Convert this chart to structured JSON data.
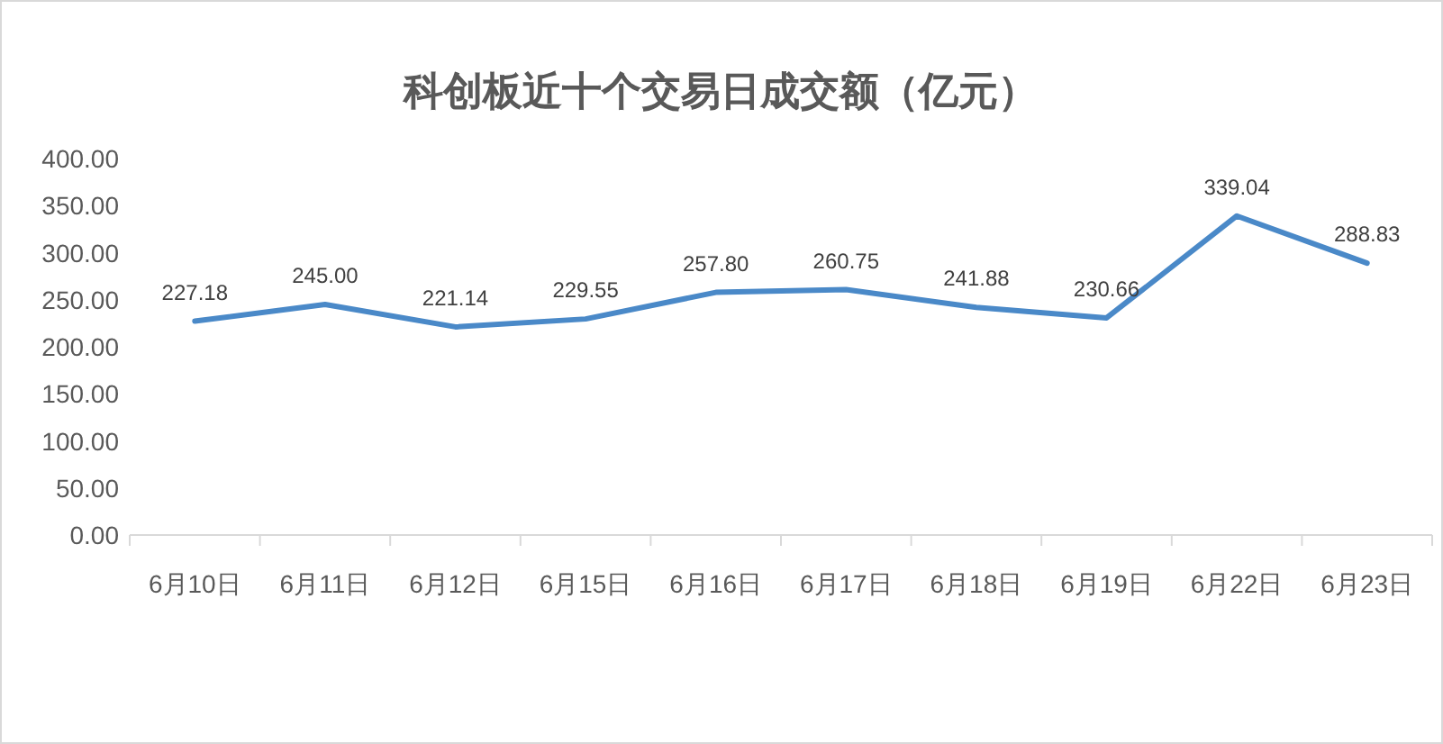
{
  "chart_data": {
    "type": "line",
    "title": "科创板近十个交易日成交额（亿元）",
    "categories": [
      "6月10日",
      "6月11日",
      "6月12日",
      "6月15日",
      "6月16日",
      "6月17日",
      "6月18日",
      "6月19日",
      "6月22日",
      "6月23日"
    ],
    "series": [
      {
        "color": "#4a89c8",
        "values": [
          227.18,
          245.0,
          221.14,
          229.55,
          257.8,
          260.75,
          241.88,
          230.66,
          339.04,
          288.83
        ],
        "value_labels": [
          "227.18",
          "245.00",
          "221.14",
          "229.55",
          "257.80",
          "260.75",
          "241.88",
          "230.66",
          "339.04",
          "288.83"
        ]
      }
    ],
    "ylim": [
      0,
      400
    ],
    "yticks": [
      {
        "value": 0,
        "label": "0.00"
      },
      {
        "value": 50,
        "label": "50.00"
      },
      {
        "value": 100,
        "label": "100.00"
      },
      {
        "value": 150,
        "label": "150.00"
      },
      {
        "value": 200,
        "label": "200.00"
      },
      {
        "value": 250,
        "label": "250.00"
      },
      {
        "value": 300,
        "label": "300.00"
      },
      {
        "value": 350,
        "label": "350.00"
      },
      {
        "value": 400,
        "label": "400.00"
      }
    ],
    "grid": false,
    "marker": "none",
    "line_style": "solid"
  }
}
